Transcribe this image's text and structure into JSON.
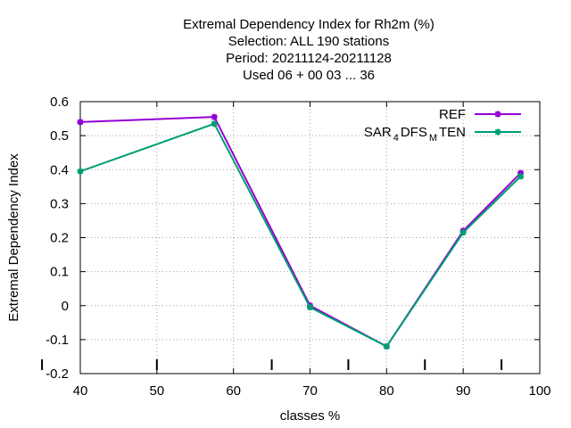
{
  "chart_data": {
    "type": "line",
    "title_lines": [
      "Extremal Dependency Index  for Rh2m (%)",
      "Selection: ALL    190 stations",
      "Period: 20211124-20211128",
      "Used  06 + 00 03 ... 36"
    ],
    "xlabel": "classes %",
    "ylabel": "Extremal Dependency Index",
    "xlim": [
      40,
      100
    ],
    "ylim": [
      -0.2,
      0.6
    ],
    "x_ticks": [
      "40",
      "50",
      "60",
      "70",
      "80",
      "90",
      "100"
    ],
    "y_ticks": [
      "-0.2",
      "-0.1",
      "0",
      "0.1",
      "0.2",
      "0.3",
      "0.4",
      "0.5",
      "0.6"
    ],
    "x_tick_values": [
      40,
      50,
      60,
      70,
      80,
      90,
      100
    ],
    "y_tick_values": [
      -0.2,
      -0.1,
      0,
      0.1,
      0.2,
      0.3,
      0.4,
      0.5,
      0.6
    ],
    "extra_x_marks": [
      35,
      50,
      65,
      75,
      85,
      95
    ],
    "grid": true,
    "legend_position": "top-right",
    "series": [
      {
        "name": "REF",
        "color": "#9400d3",
        "x": [
          40,
          57.5,
          70,
          80,
          90,
          97.5
        ],
        "y": [
          0.54,
          0.555,
          0.0,
          -0.12,
          0.22,
          0.39
        ]
      },
      {
        "name_parts": [
          "SAR",
          "4",
          "DFS",
          "M",
          "TEN"
        ],
        "color": "#009e73",
        "x": [
          40,
          57.5,
          70,
          80,
          90,
          97.5
        ],
        "y": [
          0.395,
          0.535,
          -0.005,
          -0.12,
          0.215,
          0.38
        ]
      }
    ]
  }
}
